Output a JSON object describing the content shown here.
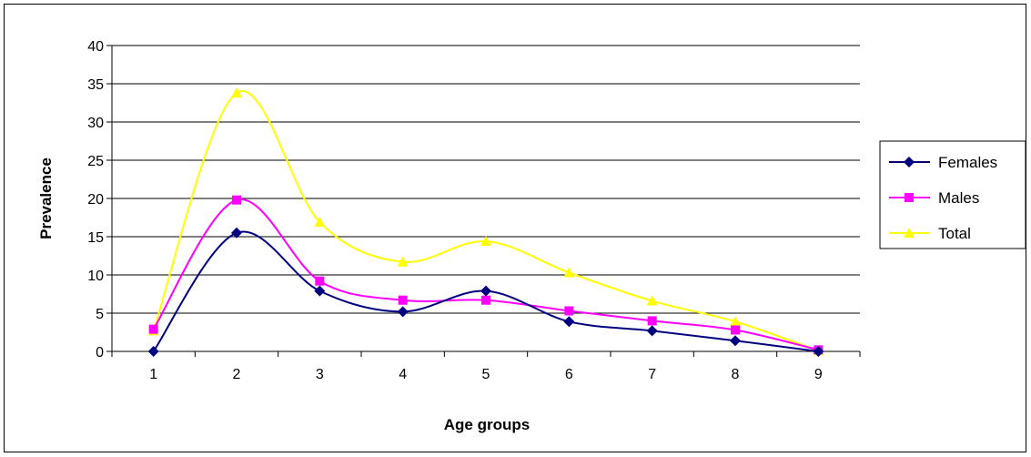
{
  "chart_data": {
    "type": "line",
    "xlabel": "Age groups",
    "ylabel": "Prevalence",
    "ylim": [
      0,
      40
    ],
    "y_ticks": [
      "0",
      "5",
      "10",
      "15",
      "20",
      "25",
      "30",
      "35",
      "40"
    ],
    "categories": [
      "1",
      "2",
      "3",
      "4",
      "5",
      "6",
      "7",
      "8",
      "9"
    ],
    "grid": "horizontal",
    "smooth": true,
    "legend_position": "right",
    "series": [
      {
        "name": "Females",
        "color": "#000080",
        "marker": "diamond",
        "values": [
          0,
          15.5,
          7.9,
          5.2,
          7.9,
          3.9,
          2.7,
          1.4,
          0
        ]
      },
      {
        "name": "Males",
        "color": "#FF00FF",
        "marker": "square",
        "values": [
          2.9,
          19.8,
          9.2,
          6.7,
          6.7,
          5.3,
          4.0,
          2.8,
          0.2
        ]
      },
      {
        "name": "Total",
        "color": "#FFFF00",
        "marker": "triangle",
        "values": [
          2.7,
          33.8,
          16.9,
          11.7,
          14.4,
          10.3,
          6.6,
          3.9,
          0.1
        ]
      }
    ]
  }
}
